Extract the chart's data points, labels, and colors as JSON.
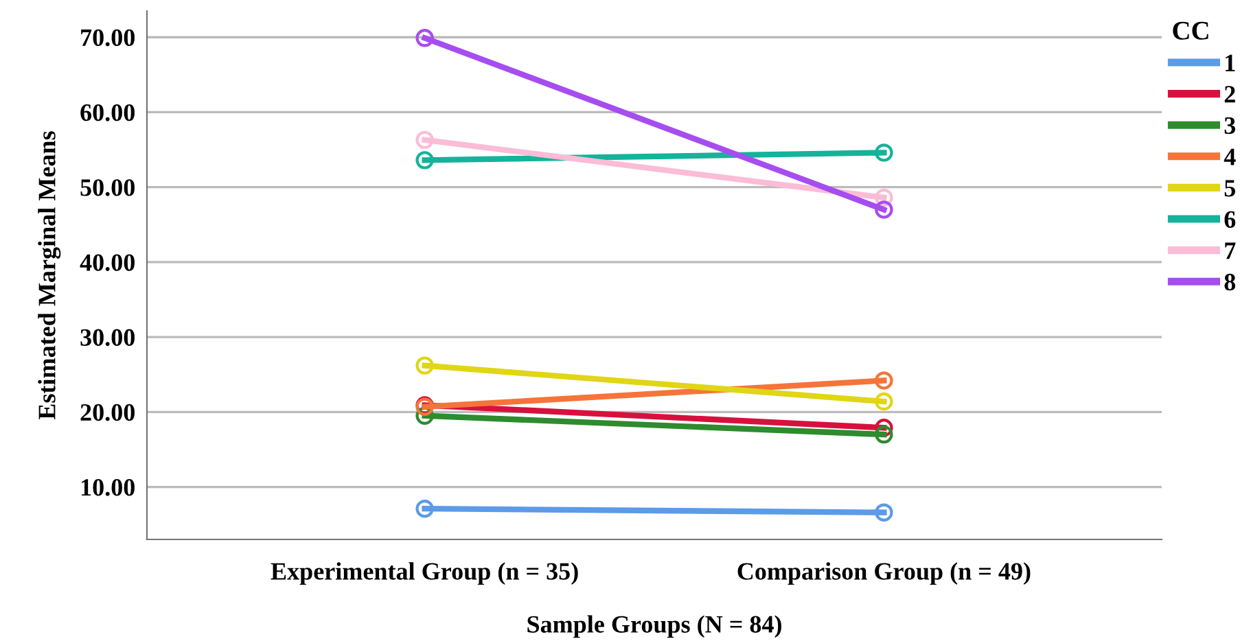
{
  "chart_data": {
    "type": "line",
    "xlabel": "Sample Groups (N = 84)",
    "ylabel": "Estimated Marginal Means",
    "legend_title": "CC",
    "categories": [
      "Experimental Group (n = 35)",
      "Comparison Group (n = 49)"
    ],
    "series": [
      {
        "name": "1",
        "color": "#5b9be8",
        "values": [
          7.1,
          6.6
        ]
      },
      {
        "name": "2",
        "color": "#d8103e",
        "values": [
          20.9,
          17.9
        ]
      },
      {
        "name": "3",
        "color": "#2e8b2e",
        "values": [
          19.5,
          17.0
        ]
      },
      {
        "name": "4",
        "color": "#f5743a",
        "values": [
          20.7,
          24.2
        ]
      },
      {
        "name": "5",
        "color": "#e0d614",
        "values": [
          26.2,
          21.4
        ]
      },
      {
        "name": "6",
        "color": "#14b39a",
        "values": [
          53.6,
          54.6
        ]
      },
      {
        "name": "7",
        "color": "#fbbcd6",
        "values": [
          56.3,
          48.6
        ]
      },
      {
        "name": "8",
        "color": "#a64df0",
        "values": [
          69.9,
          47.0
        ]
      }
    ],
    "ylim": [
      3,
      73.5
    ],
    "yticks": [
      {
        "value": 10,
        "label": "10.00"
      },
      {
        "value": 20,
        "label": "20.00"
      },
      {
        "value": 30,
        "label": "30.00"
      },
      {
        "value": 40,
        "label": "40.00"
      },
      {
        "value": 50,
        "label": "50.00"
      },
      {
        "value": 60,
        "label": "60.00"
      },
      {
        "value": 70,
        "label": "70.00"
      }
    ],
    "grid": "y",
    "legend": "top right",
    "marker": "circle",
    "line_style": "solid"
  }
}
